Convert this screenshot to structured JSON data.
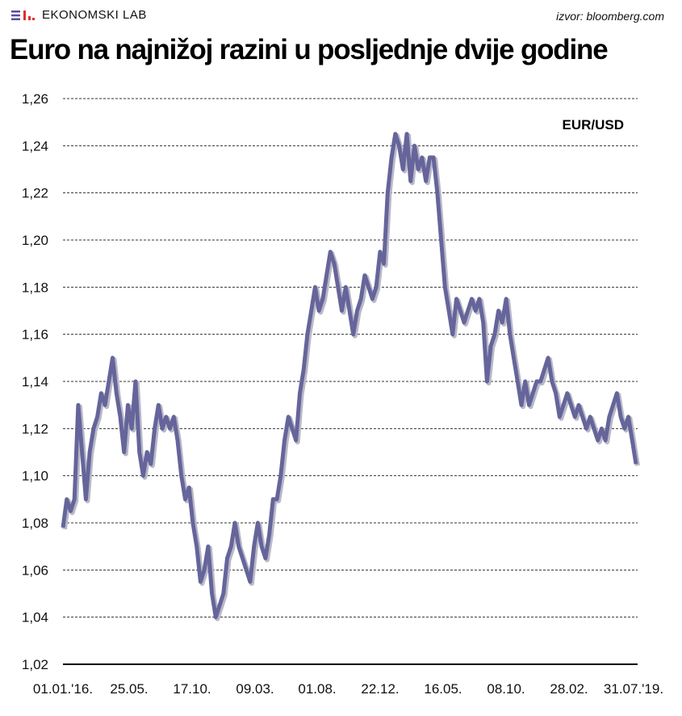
{
  "header": {
    "brand": "EKONOMSKI LAB",
    "source": "izvor: bloomberg.com"
  },
  "colors": {
    "line": "#65659b",
    "logo_purple": "#5b4a9c",
    "logo_red": "#e0302a"
  },
  "chart_data": {
    "type": "line",
    "title": "Euro na najnižoj razini u posljednje dvije godine",
    "series_label": "EUR/USD",
    "ylim": [
      1.02,
      1.26
    ],
    "yticks": [
      1.02,
      1.04,
      1.06,
      1.08,
      1.1,
      1.12,
      1.14,
      1.16,
      1.18,
      1.2,
      1.22,
      1.24,
      1.26
    ],
    "ytick_labels": [
      "1,02",
      "1,04",
      "1,06",
      "1,08",
      "1,10",
      "1,12",
      "1,14",
      "1,16",
      "1,18",
      "1,20",
      "1,22",
      "1,24",
      "1,26"
    ],
    "xtick_labels": [
      "01.01.'16.",
      "25.05.",
      "17.10.",
      "09.03.",
      "01.08.",
      "22.12.",
      "16.05.",
      "08.10.",
      "28.02.",
      "31.07.'19."
    ],
    "grid": true,
    "values": [
      1.078,
      1.09,
      1.085,
      1.09,
      1.13,
      1.11,
      1.09,
      1.11,
      1.12,
      1.125,
      1.135,
      1.13,
      1.14,
      1.15,
      1.135,
      1.125,
      1.11,
      1.13,
      1.12,
      1.14,
      1.11,
      1.1,
      1.11,
      1.105,
      1.12,
      1.13,
      1.12,
      1.125,
      1.12,
      1.125,
      1.115,
      1.1,
      1.09,
      1.095,
      1.08,
      1.07,
      1.055,
      1.06,
      1.07,
      1.05,
      1.04,
      1.045,
      1.05,
      1.065,
      1.07,
      1.08,
      1.07,
      1.065,
      1.06,
      1.055,
      1.07,
      1.08,
      1.07,
      1.065,
      1.075,
      1.09,
      1.09,
      1.1,
      1.115,
      1.125,
      1.12,
      1.115,
      1.135,
      1.145,
      1.16,
      1.17,
      1.18,
      1.17,
      1.175,
      1.185,
      1.195,
      1.19,
      1.18,
      1.17,
      1.18,
      1.17,
      1.16,
      1.17,
      1.175,
      1.185,
      1.18,
      1.175,
      1.18,
      1.195,
      1.19,
      1.22,
      1.235,
      1.245,
      1.24,
      1.23,
      1.245,
      1.225,
      1.24,
      1.23,
      1.235,
      1.225,
      1.235,
      1.235,
      1.22,
      1.2,
      1.18,
      1.17,
      1.16,
      1.175,
      1.17,
      1.165,
      1.17,
      1.175,
      1.17,
      1.175,
      1.165,
      1.14,
      1.155,
      1.16,
      1.17,
      1.165,
      1.175,
      1.16,
      1.15,
      1.14,
      1.13,
      1.14,
      1.13,
      1.135,
      1.14,
      1.14,
      1.145,
      1.15,
      1.14,
      1.135,
      1.125,
      1.13,
      1.135,
      1.13,
      1.125,
      1.13,
      1.125,
      1.12,
      1.125,
      1.12,
      1.115,
      1.12,
      1.115,
      1.125,
      1.13,
      1.135,
      1.125,
      1.12,
      1.125,
      1.115,
      1.105
    ]
  }
}
